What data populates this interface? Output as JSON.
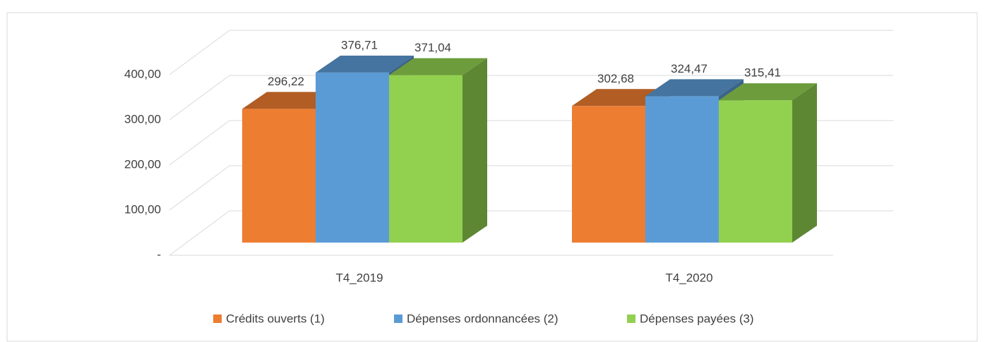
{
  "chart_data": {
    "type": "bar3d",
    "categories": [
      "T4_2019",
      "T4_2020"
    ],
    "series": [
      {
        "name": "Crédits ouverts (1)",
        "color": "#ed7d31",
        "values": [
          296.22,
          302.68
        ],
        "value_labels": [
          "296,22",
          "302,68"
        ]
      },
      {
        "name": "Dépenses ordonnancées (2)",
        "color": "#5b9bd5",
        "values": [
          376.71,
          324.47
        ],
        "value_labels": [
          "376,71",
          "324,47"
        ]
      },
      {
        "name": "Dépenses payées (3)",
        "color": "#92d050",
        "values": [
          371.04,
          315.41
        ],
        "value_labels": [
          "371,04",
          "315,41"
        ]
      }
    ],
    "ylim": [
      0,
      400
    ],
    "yticks": [
      {
        "value": 0,
        "label": "-"
      },
      {
        "value": 100,
        "label": "100,00"
      },
      {
        "value": 200,
        "label": "200,00"
      },
      {
        "value": 300,
        "label": "300,00"
      },
      {
        "value": 400,
        "label": "400,00"
      }
    ],
    "grid": true,
    "legend": "bottom"
  }
}
